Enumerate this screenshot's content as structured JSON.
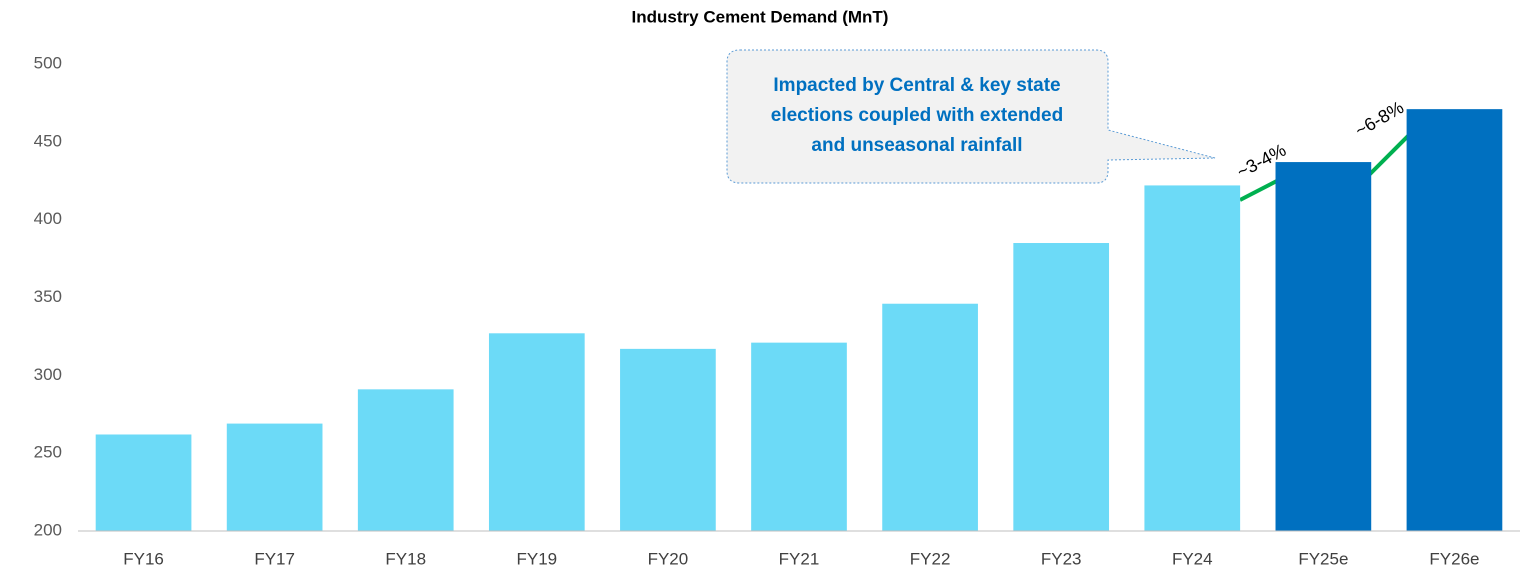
{
  "chart_data": {
    "type": "bar",
    "title": "Industry Cement Demand (MnT)",
    "categories": [
      "FY16",
      "FY17",
      "FY18",
      "FY19",
      "FY20",
      "FY21",
      "FY22",
      "FY23",
      "FY24",
      "FY25e",
      "FY26e"
    ],
    "values": [
      262,
      269,
      291,
      327,
      317,
      321,
      346,
      385,
      422,
      437,
      471
    ],
    "colors": [
      "#6cdaf7",
      "#6cdaf7",
      "#6cdaf7",
      "#6cdaf7",
      "#6cdaf7",
      "#6cdaf7",
      "#6cdaf7",
      "#6cdaf7",
      "#6cdaf7",
      "#0070c0",
      "#0070c0"
    ],
    "ylim": [
      200,
      500
    ],
    "yticks": [
      200,
      250,
      300,
      350,
      400,
      450,
      500
    ],
    "grid": false,
    "annotation": [
      "Impacted by Central & key state",
      "elections coupled with extended",
      "and unseasonal rainfall"
    ],
    "growth_labels": [
      "~3-4%",
      "~6-8%"
    ]
  }
}
